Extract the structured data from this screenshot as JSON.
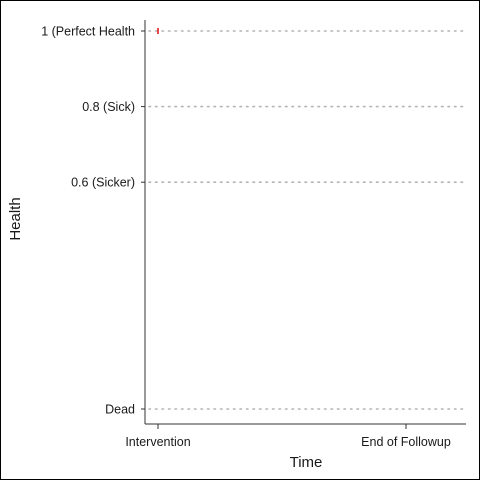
{
  "chart_data": {
    "type": "line",
    "xlabel": "Time",
    "ylabel": "Health",
    "x_categories": [
      "Intervention",
      "End of Followup"
    ],
    "y_ticks": [
      {
        "value": 1.0,
        "label": "1 (Perfect Health"
      },
      {
        "value": 0.8,
        "label": "0.8 (Sick)"
      },
      {
        "value": 0.6,
        "label": "0.6 (Sicker)"
      },
      {
        "value": 0.0,
        "label": "Dead"
      }
    ],
    "ylim": [
      0.0,
      1.0
    ],
    "grid": "horizontal dotted",
    "series": [
      {
        "color": "#e41a1c",
        "points": [
          {
            "x": "Intervention",
            "y": 1.0
          }
        ]
      }
    ]
  }
}
